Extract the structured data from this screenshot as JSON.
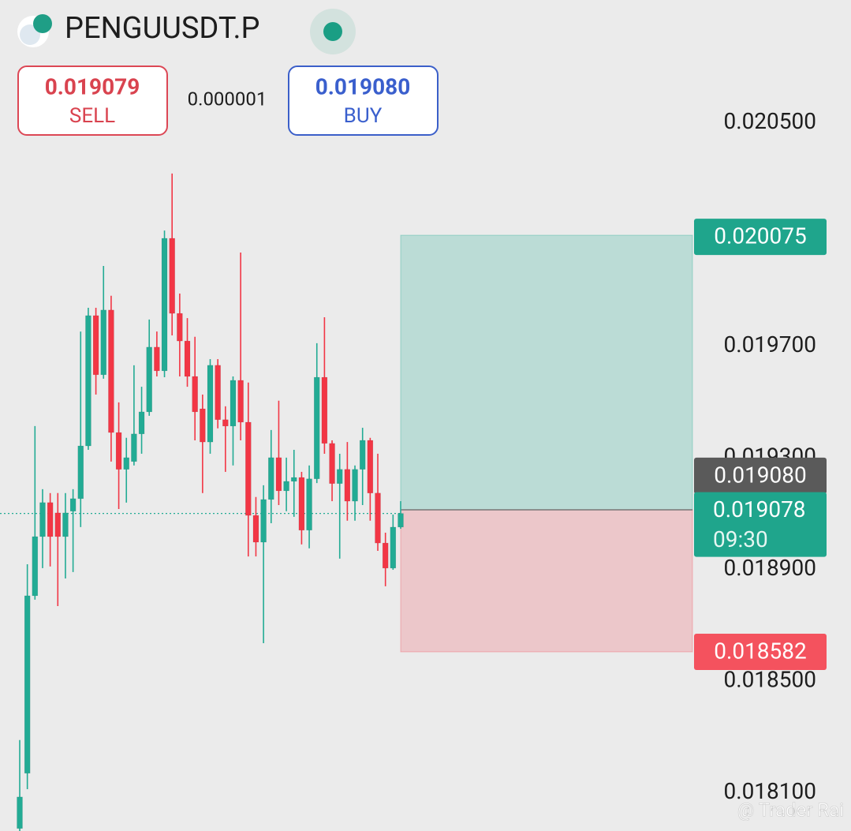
{
  "header": {
    "symbol": "PENGUUSDT.P",
    "sell": {
      "price": 0.019079,
      "label": "SELL"
    },
    "spread": 1e-06,
    "buy": {
      "price": {
        "value": 0.01908,
        "label": "0.019080"
      },
      "label": "BUY"
    }
  },
  "watermark": "@ Trader Rai",
  "chart_data": {
    "type": "candlestick",
    "up_color": "#22ab94",
    "down_color": "#f23645",
    "open": [
      0.017949,
      0.018147,
      0.018783,
      0.018995,
      0.019117,
      0.01908,
      0.018995,
      0.019086,
      0.019131,
      0.01932,
      0.019787,
      0.019575,
      0.019807,
      0.019368,
      0.019236,
      0.019264,
      0.019363,
      0.019442,
      0.019674,
      0.019589,
      0.020064,
      0.019795,
      0.019696,
      0.019569,
      0.019453,
      0.019334,
      0.019609,
      0.019414,
      0.019391,
      0.019555,
      0.019405,
      0.019071,
      0.018975,
      0.019128,
      0.019278,
      0.019159,
      0.019193,
      0.019207,
      0.019018,
      0.019202,
      0.019566,
      0.019329,
      0.019185,
      0.019236,
      0.019122,
      0.019236,
      0.01934,
      0.019151,
      0.018972,
      0.018882,
      0.019029
    ],
    "high": [
      0.018266,
      0.018896,
      0.019391,
      0.019165,
      0.019151,
      0.019151,
      0.019151,
      0.019165,
      0.01973,
      0.019815,
      0.019815,
      0.019965,
      0.019858,
      0.019476,
      0.019349,
      0.019609,
      0.019532,
      0.019773,
      0.01973,
      0.020092,
      0.020296,
      0.019866,
      0.019778,
      0.019711,
      0.019504,
      0.019631,
      0.019631,
      0.019462,
      0.019569,
      0.020013,
      0.019547,
      0.019137,
      0.019179,
      0.019377,
      0.019482,
      0.019278,
      0.019306,
      0.019227,
      0.01925,
      0.019688,
      0.019781,
      0.01934,
      0.019292,
      0.019334,
      0.01925,
      0.019385,
      0.019349,
      0.019292,
      0.019009,
      0.019074,
      0.019122
    ],
    "low": [
      0.01794,
      0.01809,
      0.018769,
      0.018882,
      0.018888,
      0.018746,
      0.018845,
      0.018868,
      0.019029,
      0.019306,
      0.019504,
      0.019561,
      0.019264,
      0.019094,
      0.019117,
      0.01925,
      0.019292,
      0.019428,
      0.019569,
      0.019566,
      0.019716,
      0.019569,
      0.019532,
      0.01934,
      0.019151,
      0.019292,
      0.019383,
      0.019227,
      0.01925,
      0.01934,
      0.018924,
      0.018924,
      0.018613,
      0.019043,
      0.019108,
      0.019086,
      0.019066,
      0.018967,
      0.018953,
      0.019187,
      0.019292,
      0.019122,
      0.018916,
      0.019052,
      0.019052,
      0.019108,
      0.019052,
      0.018944,
      0.018817,
      0.018876,
      0.019023
    ],
    "close": [
      0.018062,
      0.018783,
      0.018995,
      0.019117,
      0.018995,
      0.018995,
      0.01908,
      0.019131,
      0.01932,
      0.019787,
      0.019575,
      0.019807,
      0.019368,
      0.019236,
      0.019278,
      0.019363,
      0.019442,
      0.019674,
      0.019589,
      0.020064,
      0.019795,
      0.019696,
      0.019569,
      0.019442,
      0.019334,
      0.019609,
      0.019414,
      0.019391,
      0.019555,
      0.019405,
      0.019071,
      0.018975,
      0.019128,
      0.019278,
      0.019159,
      0.019193,
      0.019207,
      0.019018,
      0.019202,
      0.019566,
      0.019329,
      0.019185,
      0.019236,
      0.019122,
      0.019236,
      0.01934,
      0.019151,
      0.018972,
      0.018882,
      0.019029,
      0.019078
    ],
    "ylim": [
      0.01794,
      0.020918
    ],
    "yticks": [
      {
        "value": 0.0205,
        "label": "0.020500"
      },
      {
        "value": 0.0197,
        "label": "0.019700"
      },
      {
        "value": 0.0193,
        "label": "0.019300"
      },
      {
        "value": 0.0189,
        "label": "0.018900"
      },
      {
        "value": 0.0185,
        "label": "0.018500"
      },
      {
        "value": 0.0181,
        "label": "0.018100"
      }
    ],
    "position": {
      "target": 0.020075,
      "entry": 0.019091,
      "stop": 0.018582
    },
    "ask": {
      "value": 0.01908,
      "label": "0.019080"
    },
    "last_price": 0.019078,
    "countdown": "09:30"
  }
}
